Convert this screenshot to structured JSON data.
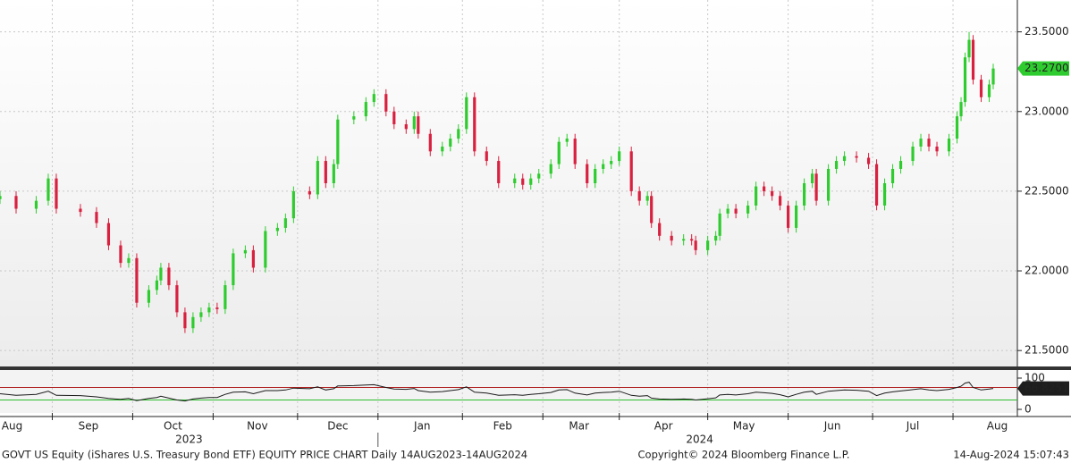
{
  "chart_data": {
    "type": "candlestick",
    "up_color": "#2ecc2e",
    "down_color": "#d8203f",
    "x": [
      0,
      4,
      9,
      12,
      14,
      20,
      24,
      27,
      30,
      32,
      34,
      37,
      39,
      40,
      42,
      44,
      46,
      48,
      50,
      52,
      54,
      56,
      58,
      61,
      63,
      66,
      69,
      71,
      73,
      77,
      79,
      81,
      83,
      84,
      88,
      91,
      93,
      96,
      98,
      101,
      103,
      104,
      107,
      110,
      112,
      114,
      116,
      118,
      121,
      124,
      128,
      130,
      132,
      134,
      137,
      139,
      141,
      143,
      146,
      148,
      150,
      152,
      154,
      157,
      159,
      161,
      162,
      164,
      167,
      170,
      172,
      173,
      176,
      178,
      179,
      181,
      183,
      186,
      188,
      190,
      192,
      194,
      196,
      198,
      200,
      202,
      203,
      206,
      208,
      210,
      213,
      216,
      218,
      220,
      222,
      224,
      227,
      229,
      231,
      233,
      236,
      238,
      239,
      240,
      241,
      242,
      244,
      246,
      247
    ],
    "open": [
      22.45,
      22.47,
      22.39,
      22.44,
      22.58,
      22.39,
      22.37,
      22.3,
      22.16,
      22.05,
      22.08,
      21.8,
      21.88,
      21.94,
      22.02,
      21.91,
      21.74,
      21.64,
      21.71,
      21.74,
      21.77,
      21.76,
      21.91,
      22.11,
      22.13,
      22.02,
      22.25,
      22.27,
      22.33,
      22.5,
      22.48,
      22.69,
      22.55,
      22.67,
      22.95,
      22.97,
      23.06,
      23.11,
      23.0,
      22.92,
      22.89,
      22.97,
      22.86,
      22.75,
      22.78,
      22.83,
      22.89,
      23.09,
      22.75,
      22.69,
      22.55,
      22.58,
      22.54,
      22.58,
      22.61,
      22.67,
      22.81,
      22.83,
      22.67,
      22.55,
      22.64,
      22.67,
      22.69,
      22.75,
      22.5,
      22.44,
      22.47,
      22.3,
      22.22,
      22.19,
      22.2,
      22.19,
      22.13,
      22.19,
      22.22,
      22.36,
      22.39,
      22.36,
      22.41,
      22.53,
      22.5,
      22.47,
      22.41,
      22.27,
      22.41,
      22.55,
      22.61,
      22.44,
      22.64,
      22.69,
      22.72,
      22.71,
      22.67,
      22.41,
      22.55,
      22.64,
      22.69,
      22.78,
      22.83,
      22.78,
      22.75,
      22.83,
      22.97,
      23.06,
      23.34,
      23.45,
      23.2,
      23.09,
      23.17
    ],
    "high": [
      22.5,
      22.5,
      22.47,
      22.61,
      22.61,
      22.42,
      22.4,
      22.33,
      22.19,
      22.11,
      22.11,
      21.91,
      21.97,
      22.05,
      22.05,
      21.94,
      21.77,
      21.74,
      21.77,
      21.8,
      21.8,
      21.94,
      22.14,
      22.16,
      22.16,
      22.28,
      22.3,
      22.36,
      22.53,
      22.53,
      22.72,
      22.72,
      22.7,
      22.98,
      23.0,
      23.09,
      23.14,
      23.14,
      23.03,
      22.95,
      23.0,
      23.0,
      22.89,
      22.81,
      22.86,
      22.92,
      23.12,
      23.12,
      22.78,
      22.72,
      22.61,
      22.61,
      22.61,
      22.64,
      22.7,
      22.84,
      22.86,
      22.86,
      22.7,
      22.67,
      22.7,
      22.72,
      22.78,
      22.78,
      22.53,
      22.5,
      22.5,
      22.33,
      22.25,
      22.23,
      22.23,
      22.22,
      22.22,
      22.25,
      22.39,
      22.42,
      22.42,
      22.44,
      22.56,
      22.56,
      22.53,
      22.5,
      22.44,
      22.44,
      22.58,
      22.64,
      22.64,
      22.67,
      22.72,
      22.75,
      22.75,
      22.74,
      22.7,
      22.58,
      22.67,
      22.72,
      22.81,
      22.86,
      22.86,
      22.81,
      22.86,
      23.0,
      23.09,
      23.37,
      23.5,
      23.48,
      23.23,
      23.2,
      23.3
    ],
    "low": [
      22.42,
      22.36,
      22.36,
      22.41,
      22.36,
      22.34,
      22.27,
      22.13,
      22.02,
      22.02,
      21.77,
      21.77,
      21.85,
      21.91,
      21.88,
      21.71,
      21.61,
      21.61,
      21.68,
      21.71,
      21.73,
      21.73,
      21.88,
      22.08,
      21.99,
      21.99,
      22.22,
      22.24,
      22.3,
      22.45,
      22.45,
      22.52,
      22.52,
      22.64,
      22.92,
      22.94,
      23.03,
      22.97,
      22.89,
      22.86,
      22.86,
      22.83,
      22.72,
      22.72,
      22.75,
      22.8,
      22.86,
      22.72,
      22.66,
      22.52,
      22.52,
      22.51,
      22.51,
      22.55,
      22.58,
      22.64,
      22.78,
      22.64,
      22.52,
      22.52,
      22.61,
      22.64,
      22.66,
      22.47,
      22.41,
      22.41,
      22.27,
      22.19,
      22.16,
      22.16,
      22.16,
      22.1,
      22.1,
      22.16,
      22.19,
      22.33,
      22.33,
      22.33,
      22.38,
      22.47,
      22.44,
      22.38,
      22.24,
      22.24,
      22.38,
      22.52,
      22.41,
      22.41,
      22.61,
      22.66,
      22.68,
      22.64,
      22.38,
      22.38,
      22.52,
      22.61,
      22.66,
      22.75,
      22.75,
      22.72,
      22.72,
      22.8,
      22.94,
      23.03,
      23.31,
      23.17,
      23.06,
      23.06,
      23.14
    ],
    "close": [
      22.47,
      22.39,
      22.44,
      22.58,
      22.39,
      22.37,
      22.3,
      22.16,
      22.05,
      22.08,
      21.8,
      21.88,
      21.94,
      22.02,
      21.91,
      21.74,
      21.64,
      21.71,
      21.74,
      21.77,
      21.76,
      21.91,
      22.11,
      22.13,
      22.02,
      22.25,
      22.27,
      22.33,
      22.5,
      22.48,
      22.69,
      22.55,
      22.67,
      22.95,
      22.97,
      23.06,
      23.11,
      23.0,
      22.92,
      22.89,
      22.97,
      22.86,
      22.75,
      22.78,
      22.83,
      22.89,
      23.09,
      22.75,
      22.69,
      22.55,
      22.58,
      22.54,
      22.58,
      22.61,
      22.67,
      22.81,
      22.83,
      22.67,
      22.55,
      22.64,
      22.67,
      22.69,
      22.75,
      22.5,
      22.44,
      22.47,
      22.3,
      22.22,
      22.19,
      22.2,
      22.19,
      22.13,
      22.19,
      22.22,
      22.36,
      22.39,
      22.36,
      22.41,
      22.53,
      22.5,
      22.47,
      22.41,
      22.27,
      22.41,
      22.55,
      22.61,
      22.44,
      22.64,
      22.69,
      22.72,
      22.71,
      22.67,
      22.41,
      22.55,
      22.64,
      22.69,
      22.78,
      22.83,
      22.78,
      22.75,
      22.83,
      22.97,
      23.06,
      23.34,
      23.45,
      23.2,
      23.09,
      23.17,
      23.27
    ],
    "last_price": {
      "value": 23.27,
      "label": "23.2700"
    },
    "last_price_color": "#2ecc2e",
    "xlim": [
      0,
      253
    ],
    "ylim": [
      21.4,
      23.7
    ],
    "yticks": [
      {
        "value": 21.5,
        "label": "21.5000"
      },
      {
        "value": 22.0,
        "label": "22.0000"
      },
      {
        "value": 22.5,
        "label": "22.5000"
      },
      {
        "value": 23.0,
        "label": "23.0000"
      },
      {
        "value": 23.5,
        "label": "23.5000"
      }
    ],
    "xgrid": [
      13,
      33,
      53,
      74,
      94,
      115,
      135,
      154,
      176,
      196,
      217,
      237
    ],
    "xticks": [
      {
        "value": 3,
        "label": "Aug"
      },
      {
        "value": 22,
        "label": "Sep"
      },
      {
        "value": 43,
        "label": "Oct"
      },
      {
        "value": 64,
        "label": "Nov"
      },
      {
        "value": 84,
        "label": "Dec"
      },
      {
        "value": 105,
        "label": "Jan"
      },
      {
        "value": 125,
        "label": "Feb"
      },
      {
        "value": 144,
        "label": "Mar"
      },
      {
        "value": 165,
        "label": "Apr"
      },
      {
        "value": 185,
        "label": "May"
      },
      {
        "value": 207,
        "label": "Jun"
      },
      {
        "value": 227,
        "label": "Jul"
      },
      {
        "value": 248,
        "label": "Aug"
      }
    ],
    "year_labels": [
      {
        "value": 47,
        "label": "2023"
      },
      {
        "value": 174,
        "label": "2024"
      }
    ],
    "year_break": 94,
    "grid": true,
    "rsi": {
      "color": "#1a1a1a",
      "values": [
        50,
        45,
        48,
        58,
        45,
        44,
        40,
        35,
        32,
        35,
        28,
        35,
        38,
        42,
        36,
        30,
        27,
        33,
        36,
        38,
        38,
        48,
        55,
        56,
        50,
        60,
        60,
        62,
        68,
        66,
        72,
        62,
        66,
        75,
        76,
        78,
        79,
        70,
        65,
        64,
        67,
        60,
        55,
        57,
        60,
        63,
        72,
        55,
        52,
        45,
        47,
        45,
        48,
        50,
        54,
        62,
        63,
        52,
        46,
        52,
        54,
        55,
        58,
        45,
        42,
        44,
        36,
        33,
        32,
        33,
        32,
        30,
        34,
        37,
        46,
        48,
        46,
        50,
        55,
        53,
        51,
        47,
        40,
        48,
        55,
        58,
        48,
        58,
        60,
        62,
        61,
        58,
        44,
        52,
        56,
        59,
        63,
        66,
        62,
        60,
        64,
        70,
        74,
        84,
        87,
        70,
        62,
        65,
        66.8251
      ],
      "last": 66.8251,
      "ylim": [
        0,
        100
      ],
      "yticks": [
        0,
        100
      ],
      "upper": 70,
      "upper_color": "#b02020",
      "lower": 30,
      "lower_color": "#2ebd2e"
    },
    "footer_left": "GOVT US Equity (iShares U.S. Treasury Bond ETF) EQUITY PRICE CHART  Daily 14AUG2023-14AUG2024",
    "footer_center": "Copyright© 2024 Bloomberg Finance L.P.",
    "footer_right": "14-Aug-2024 15:07:43"
  }
}
